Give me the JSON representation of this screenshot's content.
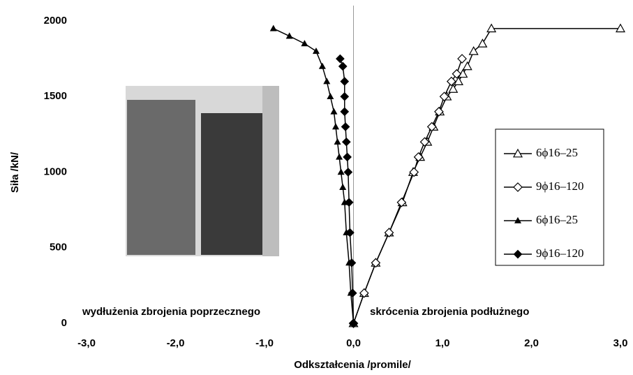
{
  "chart_data": {
    "type": "line",
    "x_label": "Odkształcenia /promile/",
    "y_label": "Siła /kN/",
    "annotations": [
      "wydłużenia zbrojenia poprzecznego",
      "skrócenia zbrojenia podłużnego"
    ],
    "xlim": [
      -3,
      3
    ],
    "xticks": [
      {
        "value": -3,
        "label": "-3,0"
      },
      {
        "value": -2,
        "label": "-2,0"
      },
      {
        "value": -1,
        "label": "-1,0"
      },
      {
        "value": 0,
        "label": "0,0"
      },
      {
        "value": 1,
        "label": "1,0"
      },
      {
        "value": 2,
        "label": "2,0"
      },
      {
        "value": 3,
        "label": "3,0"
      }
    ],
    "ylim": [
      0,
      2000
    ],
    "yticks": [
      0,
      500,
      1000,
      1500,
      2000
    ],
    "legend": "right",
    "series": [
      {
        "name": "6ϕ16–25",
        "color": "#000000",
        "marker": "triangle-open",
        "x": [
          0,
          0.12,
          0.25,
          0.4,
          0.55,
          0.67,
          0.75,
          0.83,
          0.9,
          0.97,
          1.05,
          1.12,
          1.18,
          1.23,
          1.28,
          1.35,
          1.45,
          1.55,
          3.0
        ],
        "values": [
          0,
          200,
          400,
          600,
          800,
          1000,
          1100,
          1200,
          1300,
          1400,
          1500,
          1550,
          1600,
          1650,
          1700,
          1800,
          1850,
          1950,
          1950
        ]
      },
      {
        "name": "9ϕ16–120",
        "color": "#000000",
        "marker": "diamond-open",
        "x": [
          0,
          0.12,
          0.25,
          0.4,
          0.54,
          0.68,
          0.73,
          0.8,
          0.88,
          0.96,
          1.02,
          1.1,
          1.16,
          1.22
        ],
        "values": [
          0,
          200,
          400,
          600,
          800,
          1000,
          1100,
          1200,
          1300,
          1400,
          1500,
          1600,
          1650,
          1750
        ]
      },
      {
        "name": "6ϕ16–25",
        "color": "#000000",
        "marker": "triangle-filled",
        "x": [
          0,
          -0.03,
          -0.05,
          -0.08,
          -0.1,
          -0.12,
          -0.14,
          -0.16,
          -0.18,
          -0.2,
          -0.22,
          -0.26,
          -0.3,
          -0.35,
          -0.42,
          -0.55,
          -0.72,
          -0.9
        ],
        "values": [
          0,
          200,
          400,
          600,
          800,
          900,
          1000,
          1100,
          1200,
          1300,
          1400,
          1500,
          1600,
          1700,
          1800,
          1850,
          1900,
          1950
        ]
      },
      {
        "name": "9ϕ16–120",
        "color": "#000000",
        "marker": "diamond-filled",
        "x": [
          0,
          -0.01,
          -0.02,
          -0.04,
          -0.05,
          -0.06,
          -0.07,
          -0.08,
          -0.09,
          -0.1,
          -0.1,
          -0.1,
          -0.12,
          -0.15
        ],
        "values": [
          0,
          200,
          400,
          600,
          800,
          1000,
          1100,
          1200,
          1300,
          1400,
          1500,
          1600,
          1700,
          1750
        ]
      }
    ]
  }
}
